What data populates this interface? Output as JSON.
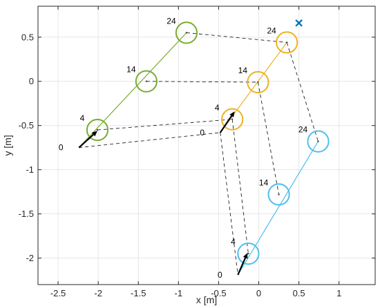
{
  "chart_data": {
    "type": "scatter",
    "xlabel": "x [m]",
    "ylabel": "y [m]",
    "xlim": [
      -2.75,
      1.45
    ],
    "ylim": [
      -2.3,
      0.85
    ],
    "xticks": [
      -2.5,
      -2,
      -1.5,
      -1,
      -0.5,
      0,
      0.5,
      1
    ],
    "yticks": [
      0.5,
      0,
      -0.5,
      -1,
      -1.5,
      -2
    ],
    "xtick_labels": [
      "-2.5",
      "-2",
      "-1.5",
      "-1",
      "-0.5",
      "0",
      "0.5",
      "1"
    ],
    "ytick_labels": [
      "0.5",
      "0",
      "-0.5",
      "-1",
      "-1.5",
      "-2"
    ],
    "grid": true,
    "robot_radius_m": 0.13,
    "colors": {
      "green": "#77AC30",
      "orange": "#EDB120",
      "blue": "#4DBEEE",
      "target": "#0072BD",
      "axes": "#262626",
      "grid": "#e6e6e6"
    },
    "series": [
      {
        "color": "green",
        "points": [
          {
            "label": "0",
            "x": -2.24,
            "y": -0.75
          },
          {
            "label": "4",
            "x": -2.01,
            "y": -0.55
          },
          {
            "label": "14",
            "x": -1.4,
            "y": 0.0
          },
          {
            "label": "24",
            "x": -0.9,
            "y": 0.55
          }
        ]
      },
      {
        "color": "orange",
        "points": [
          {
            "label": "0",
            "x": -0.48,
            "y": -0.58
          },
          {
            "label": "4",
            "x": -0.33,
            "y": -0.43
          },
          {
            "label": "14",
            "x": -0.01,
            "y": -0.01
          },
          {
            "label": "24",
            "x": 0.35,
            "y": 0.44
          }
        ]
      },
      {
        "color": "blue",
        "points": [
          {
            "label": "0",
            "x": -0.26,
            "y": -2.19
          },
          {
            "label": "4",
            "x": -0.13,
            "y": -1.95
          },
          {
            "label": "14",
            "x": 0.25,
            "y": -1.28
          },
          {
            "label": "24",
            "x": 0.74,
            "y": -0.68
          }
        ]
      }
    ],
    "arrows": [
      {
        "color": "green",
        "from": [
          -2.24,
          -0.75
        ],
        "to": [
          -2.01,
          -0.56
        ]
      },
      {
        "color": "orange",
        "from": [
          -0.48,
          -0.58
        ],
        "to": [
          -0.3,
          -0.34
        ]
      },
      {
        "color": "blue",
        "from": [
          -0.26,
          -2.19
        ],
        "to": [
          -0.14,
          -1.94
        ]
      }
    ],
    "dashed_links": [
      [
        [
          -2.24,
          -0.75
        ],
        [
          -0.48,
          -0.58
        ]
      ],
      [
        [
          -2.01,
          -0.55
        ],
        [
          -0.33,
          -0.43
        ]
      ],
      [
        [
          -1.4,
          0.0
        ],
        [
          -0.01,
          -0.01
        ]
      ],
      [
        [
          -0.9,
          0.55
        ],
        [
          0.35,
          0.44
        ]
      ],
      [
        [
          -0.48,
          -0.58
        ],
        [
          -0.26,
          -2.19
        ]
      ],
      [
        [
          -0.33,
          -0.43
        ],
        [
          -0.13,
          -1.95
        ]
      ],
      [
        [
          -0.01,
          -0.01
        ],
        [
          0.25,
          -1.28
        ]
      ],
      [
        [
          0.35,
          0.44
        ],
        [
          0.74,
          -0.68
        ]
      ]
    ],
    "target": {
      "marker": "x",
      "x": 0.5,
      "y": 0.66
    }
  }
}
